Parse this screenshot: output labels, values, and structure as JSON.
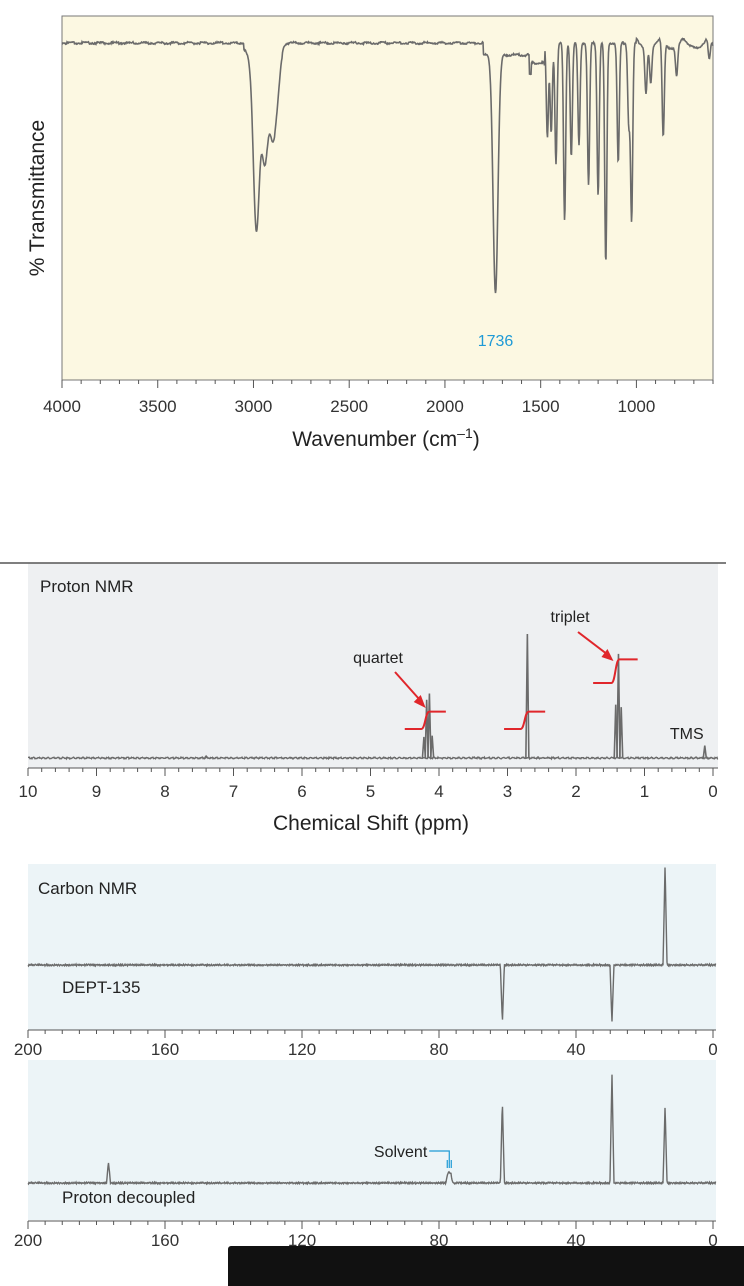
{
  "colors": {
    "ir_bg": "#fcf8e2",
    "nmr_bg": "#eef0f2",
    "c13_bg": "#ecf4f7",
    "trace": "#6b6b6b",
    "red": "#e0262b",
    "blue": "#1e9ad6"
  },
  "chart_data": [
    {
      "id": "ir",
      "type": "line",
      "title": "",
      "xlabel": "Wavenumber (cm",
      "xlabel_sup": "–1",
      "xlabel_tail": ")",
      "ylabel": "% Transmittance",
      "xlim": [
        4000,
        600
      ],
      "xticks": [
        4000,
        3500,
        3000,
        2500,
        2000,
        1500,
        1000
      ],
      "xtick_labels": [
        "4000",
        "3500",
        "3000",
        "2500",
        "2000",
        "1500",
        "1000"
      ],
      "annotations": [
        {
          "text": "1736",
          "x": 1736
        }
      ],
      "peaks": [
        {
          "x": 2985,
          "depth": 0.5
        },
        {
          "x": 2940,
          "depth": 0.28
        },
        {
          "x": 2900,
          "depth": 0.22
        },
        {
          "x": 2875,
          "depth": 0.12
        },
        {
          "x": 1736,
          "depth": 0.78
        },
        {
          "x": 1465,
          "depth": 0.3
        },
        {
          "x": 1445,
          "depth": 0.28
        },
        {
          "x": 1420,
          "depth": 0.38
        },
        {
          "x": 1375,
          "depth": 0.56
        },
        {
          "x": 1340,
          "depth": 0.36
        },
        {
          "x": 1300,
          "depth": 0.32
        },
        {
          "x": 1250,
          "depth": 0.45
        },
        {
          "x": 1200,
          "depth": 0.48
        },
        {
          "x": 1160,
          "depth": 0.7
        },
        {
          "x": 1095,
          "depth": 0.38
        },
        {
          "x": 1040,
          "depth": 0.25
        },
        {
          "x": 1025,
          "depth": 0.56
        },
        {
          "x": 950,
          "depth": 0.15
        },
        {
          "x": 925,
          "depth": 0.12
        },
        {
          "x": 860,
          "depth": 0.3
        },
        {
          "x": 790,
          "depth": 0.1
        },
        {
          "x": 620,
          "depth": 0.06
        }
      ]
    },
    {
      "id": "proton_nmr",
      "type": "line",
      "panel_label": "Proton NMR",
      "xlabel": "Chemical Shift (ppm)",
      "xlim": [
        10,
        0
      ],
      "xticks": [
        10,
        9,
        8,
        7,
        6,
        5,
        4,
        3,
        2,
        1,
        0
      ],
      "xtick_labels": [
        "10",
        "9",
        "8",
        "7",
        "6",
        "5",
        "4",
        "3",
        "2",
        "1",
        "0"
      ],
      "peaks": [
        {
          "x": 4.22,
          "height": 0.17
        },
        {
          "x": 4.18,
          "height": 0.47
        },
        {
          "x": 4.14,
          "height": 0.52
        },
        {
          "x": 4.1,
          "height": 0.18
        },
        {
          "x": 2.71,
          "height": 1.0
        },
        {
          "x": 1.42,
          "height": 0.43
        },
        {
          "x": 1.38,
          "height": 0.84
        },
        {
          "x": 1.34,
          "height": 0.41
        },
        {
          "x": 0.12,
          "height": 0.1
        },
        {
          "x": 7.4,
          "height": 0.015
        }
      ],
      "integrals": [
        {
          "x_from": 4.5,
          "x_to": 3.9,
          "rise": 0.1
        },
        {
          "x_from": 3.05,
          "x_to": 2.45,
          "rise": 0.1
        },
        {
          "x_from": 1.75,
          "x_to": 1.1,
          "rise": 0.15
        }
      ],
      "annotations": [
        {
          "text": "quartet",
          "target": 4.15
        },
        {
          "text": "triplet",
          "target": 1.38
        },
        {
          "text": "TMS",
          "target": 0.12
        }
      ]
    },
    {
      "id": "carbon_nmr",
      "type": "line",
      "panel_label": "Carbon NMR",
      "xlim": [
        200,
        0
      ],
      "xticks": [
        200,
        160,
        120,
        80,
        40,
        0
      ],
      "xtick_labels": [
        "200",
        "160",
        "120",
        "80",
        "40",
        "0"
      ],
      "spectra": [
        {
          "name": "DEPT-135",
          "peaks": [
            {
              "x": 14.0,
              "height": 1.0
            },
            {
              "x": 61.5,
              "height": -0.58
            },
            {
              "x": 29.5,
              "height": -0.58
            }
          ]
        },
        {
          "name": "Proton decoupled",
          "peaks": [
            {
              "x": 176.5,
              "height": 0.19
            },
            {
              "x": 77.5,
              "height": 0.07
            },
            {
              "x": 77.0,
              "height": 0.09
            },
            {
              "x": 76.5,
              "height": 0.07
            },
            {
              "x": 61.5,
              "height": 0.75
            },
            {
              "x": 29.5,
              "height": 1.0
            },
            {
              "x": 14.0,
              "height": 0.7
            }
          ]
        }
      ],
      "annotations": [
        {
          "text": "Solvent",
          "target": 77.0
        }
      ]
    }
  ]
}
